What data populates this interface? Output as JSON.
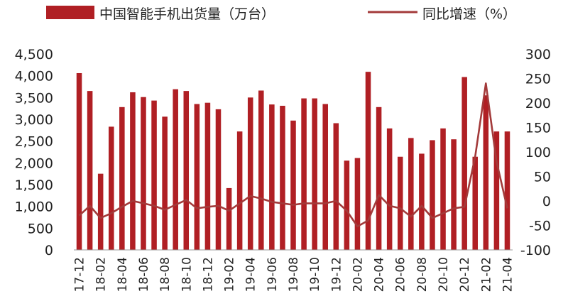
{
  "chart_data": {
    "type": "bar+line",
    "categories": [
      "17-12",
      "18-01",
      "18-02",
      "18-03",
      "18-04",
      "18-05",
      "18-06",
      "18-07",
      "18-08",
      "18-09",
      "18-10",
      "18-11",
      "18-12",
      "19-01",
      "19-02",
      "19-03",
      "19-04",
      "19-05",
      "19-06",
      "19-07",
      "19-08",
      "19-09",
      "19-10",
      "19-11",
      "19-12",
      "20-01",
      "20-02",
      "20-03",
      "20-04",
      "20-05",
      "20-06",
      "20-07",
      "20-08",
      "20-09",
      "20-10",
      "20-11",
      "20-12",
      "21-01",
      "21-02",
      "21-03",
      "21-04"
    ],
    "tick_labels": [
      "17-12",
      "18-02",
      "18-04",
      "18-06",
      "18-08",
      "18-10",
      "18-12",
      "19-02",
      "19-04",
      "19-06",
      "19-08",
      "19-10",
      "19-12",
      "20-02",
      "20-04",
      "20-06",
      "20-08",
      "20-10",
      "20-12",
      "21-02",
      "21-04"
    ],
    "series": [
      {
        "name": "中国智能手机出货量（万台）",
        "type": "bar",
        "axis": "left",
        "color": "#b01f24",
        "values": [
          4060,
          3650,
          1750,
          2830,
          3280,
          3620,
          3510,
          3430,
          3060,
          3690,
          3650,
          3350,
          3380,
          3230,
          1420,
          2720,
          3500,
          3660,
          3340,
          3310,
          2970,
          3480,
          3480,
          3350,
          2910,
          2050,
          2110,
          4090,
          3280,
          2790,
          2140,
          2570,
          2210,
          2520,
          2790,
          2540,
          3970,
          2140,
          3550,
          2720,
          2720
        ]
      },
      {
        "name": "同比增速（%）",
        "type": "line",
        "axis": "right",
        "color": "#a33a3a",
        "values": [
          -30,
          -10,
          -35,
          -25,
          -12,
          0,
          -5,
          -10,
          -18,
          -8,
          2,
          -15,
          -12,
          -10,
          -20,
          -5,
          10,
          5,
          -2,
          -5,
          -8,
          -5,
          -5,
          -5,
          0,
          -20,
          -52,
          -40,
          12,
          -10,
          -15,
          -32,
          -10,
          -35,
          -25,
          -15,
          -12,
          90,
          240,
          80,
          -15
        ]
      }
    ],
    "y_left": {
      "min": 0,
      "max": 4500,
      "step": 500,
      "tick_labels": [
        "0",
        "500",
        "1,000",
        "1,500",
        "2,000",
        "2,500",
        "3,000",
        "3,500",
        "4,000",
        "4,500"
      ]
    },
    "y_right": {
      "min": -100,
      "max": 300,
      "step": 50,
      "tick_labels": [
        "-100",
        "-50",
        "0",
        "50",
        "100",
        "150",
        "200",
        "250",
        "300"
      ]
    },
    "legend_position": "top",
    "grid": false
  }
}
